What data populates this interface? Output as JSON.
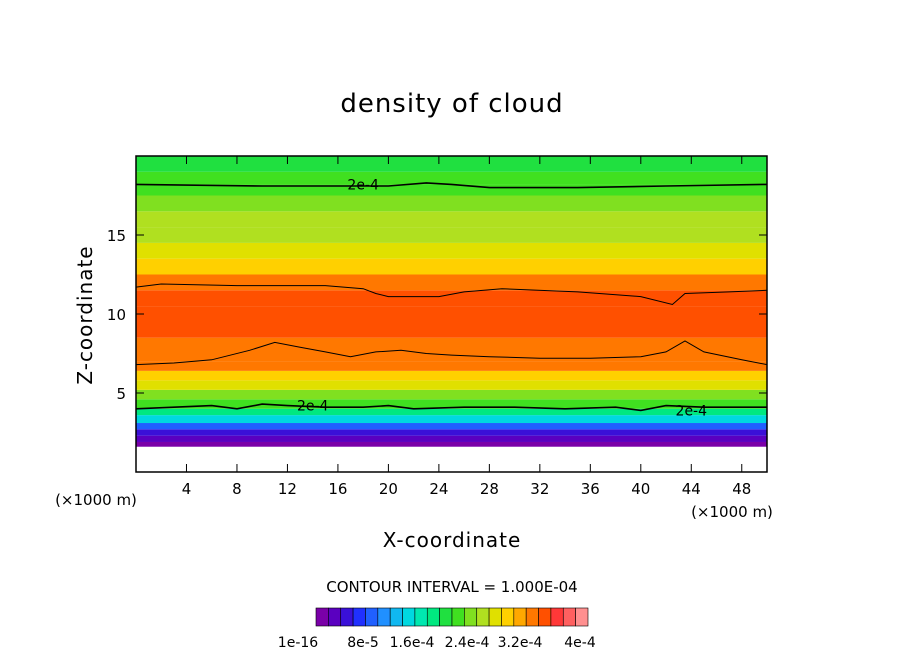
{
  "chart_data": {
    "type": "heatmap",
    "title": "density of cloud",
    "xlabel": "X-coordinate",
    "ylabel": "Z-coordinate",
    "x_unit": "(×1000 m)",
    "xlim": [
      0,
      50
    ],
    "ylim": [
      0,
      20
    ],
    "x_ticks": [
      4,
      8,
      12,
      16,
      20,
      24,
      28,
      32,
      36,
      40,
      44,
      48
    ],
    "y_ticks": [
      5,
      10,
      15
    ],
    "contour_interval_text": "CONTOUR INTERVAL = 1.000E-04",
    "contour_labels": [
      "2e-4",
      "2e-4",
      "2e-4"
    ],
    "colorbar_labels": [
      "1e-16",
      "8e-5",
      "1.6e-4",
      "2.4e-4",
      "3.2e-4",
      "4e-4"
    ],
    "colorbar_colors": [
      "#7a00a8",
      "#5a00c0",
      "#3a10d8",
      "#2030ff",
      "#2060ff",
      "#2090ff",
      "#10b8f0",
      "#00d8e0",
      "#00e8b0",
      "#00e880",
      "#20e040",
      "#40e020",
      "#80e020",
      "#b0e020",
      "#e0e000",
      "#ffd000",
      "#ffa800",
      "#ff7800",
      "#ff5000",
      "#ff3838",
      "#ff6060",
      "#ff9090"
    ],
    "profile": [
      {
        "z": 0.8,
        "value": 0
      },
      {
        "z": 1.6,
        "value": 1e-06
      },
      {
        "z": 1.9,
        "value": 2e-05
      },
      {
        "z": 2.3,
        "value": 5e-05
      },
      {
        "z": 2.7,
        "value": 9e-05
      },
      {
        "z": 3.1,
        "value": 0.00013
      },
      {
        "z": 3.6,
        "value": 0.00017
      },
      {
        "z": 4.0,
        "value": 0.0002
      },
      {
        "z": 4.6,
        "value": 0.00023
      },
      {
        "z": 5.2,
        "value": 0.00026
      },
      {
        "z": 5.8,
        "value": 0.00029
      },
      {
        "z": 6.4,
        "value": 0.00031
      },
      {
        "z": 7.0,
        "value": 0.00032
      },
      {
        "z": 8.5,
        "value": 0.00033
      },
      {
        "z": 10.5,
        "value": 0.00033
      },
      {
        "z": 11.5,
        "value": 0.00031
      },
      {
        "z": 12.5,
        "value": 0.00028
      },
      {
        "z": 13.5,
        "value": 0.00026
      },
      {
        "z": 14.5,
        "value": 0.00025
      },
      {
        "z": 15.5,
        "value": 0.00024
      },
      {
        "z": 16.5,
        "value": 0.00023
      },
      {
        "z": 17.5,
        "value": 0.00021
      },
      {
        "z": 18.2,
        "value": 0.0002
      },
      {
        "z": 19.0,
        "value": 0.00019
      },
      {
        "z": 20.0,
        "value": 0.00018
      }
    ],
    "contours": [
      {
        "level": 0.0002,
        "labeled": true,
        "points": [
          [
            0,
            18.2
          ],
          [
            10,
            18.1
          ],
          [
            20,
            18.1
          ],
          [
            23,
            18.3
          ],
          [
            25,
            18.2
          ],
          [
            28,
            18.0
          ],
          [
            35,
            18.0
          ],
          [
            42,
            18.1
          ],
          [
            50,
            18.2
          ]
        ]
      },
      {
        "level": 0.0003,
        "labeled": false,
        "points": [
          [
            0,
            11.7
          ],
          [
            2,
            11.9
          ],
          [
            8,
            11.8
          ],
          [
            15,
            11.8
          ],
          [
            18,
            11.6
          ],
          [
            19,
            11.3
          ],
          [
            20,
            11.1
          ],
          [
            24,
            11.1
          ],
          [
            26,
            11.4
          ],
          [
            29,
            11.6
          ],
          [
            35,
            11.4
          ],
          [
            40,
            11.1
          ],
          [
            42.5,
            10.6
          ],
          [
            43.5,
            11.3
          ],
          [
            47,
            11.4
          ],
          [
            50,
            11.5
          ]
        ]
      },
      {
        "level": 0.0003,
        "labeled": false,
        "points": [
          [
            0,
            6.8
          ],
          [
            3,
            6.9
          ],
          [
            6,
            7.1
          ],
          [
            9,
            7.7
          ],
          [
            11,
            8.2
          ],
          [
            13,
            7.9
          ],
          [
            15,
            7.6
          ],
          [
            17,
            7.3
          ],
          [
            19,
            7.6
          ],
          [
            21,
            7.7
          ],
          [
            23,
            7.5
          ],
          [
            25,
            7.4
          ],
          [
            28,
            7.3
          ],
          [
            32,
            7.2
          ],
          [
            36,
            7.2
          ],
          [
            40,
            7.3
          ],
          [
            42,
            7.6
          ],
          [
            43.5,
            8.3
          ],
          [
            45,
            7.6
          ],
          [
            48,
            7.1
          ],
          [
            50,
            6.8
          ]
        ]
      },
      {
        "level": 0.0002,
        "labeled": true,
        "points": [
          [
            0,
            4.0
          ],
          [
            3,
            4.1
          ],
          [
            6,
            4.2
          ],
          [
            8,
            4.0
          ],
          [
            10,
            4.3
          ],
          [
            12,
            4.2
          ],
          [
            15,
            4.1
          ],
          [
            18,
            4.1
          ],
          [
            20,
            4.2
          ],
          [
            22,
            4.0
          ],
          [
            26,
            4.1
          ],
          [
            30,
            4.1
          ],
          [
            34,
            4.0
          ],
          [
            38,
            4.1
          ],
          [
            40,
            3.9
          ],
          [
            42,
            4.2
          ],
          [
            45,
            4.1
          ],
          [
            50,
            4.1
          ]
        ]
      }
    ]
  }
}
